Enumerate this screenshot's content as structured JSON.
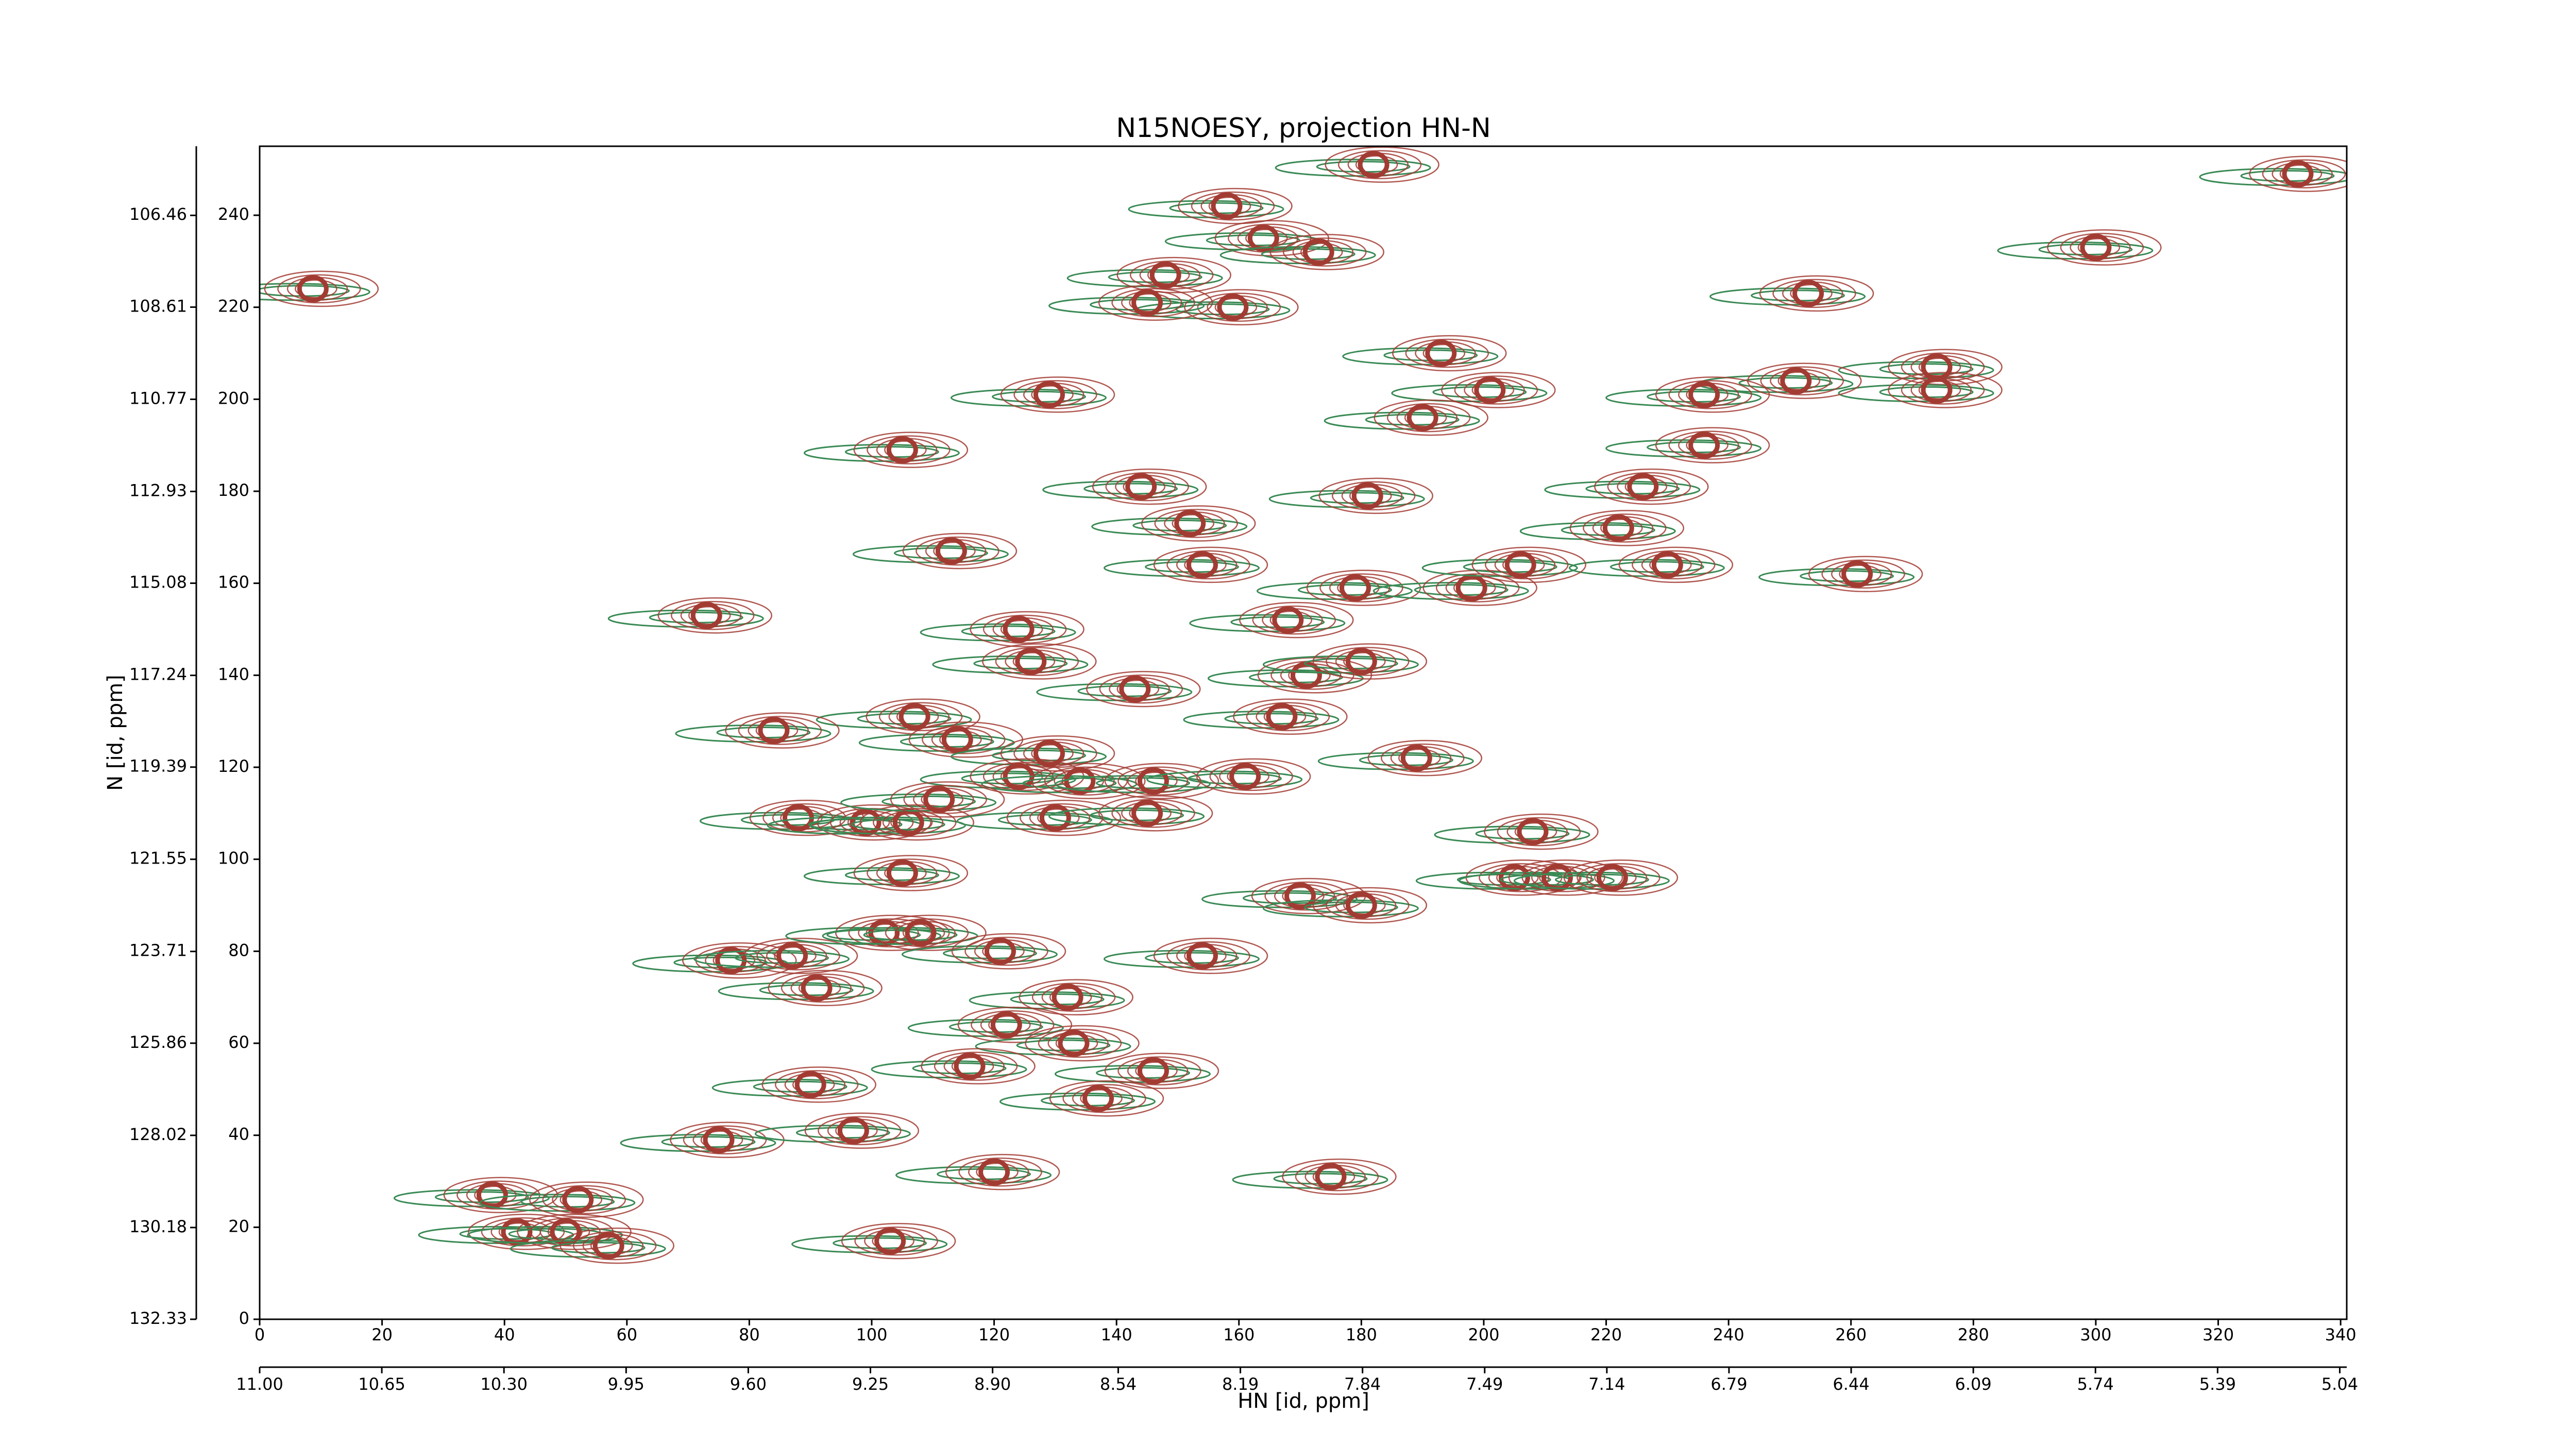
{
  "chart_data": {
    "type": "contour",
    "title": "N15NOESY, projection HN-N",
    "xlabel": "HN [id, ppm]",
    "ylabel": "N [id, ppm]",
    "xlim": [
      0,
      341
    ],
    "ylim": [
      0,
      255
    ],
    "xticks": [
      0,
      20,
      40,
      60,
      80,
      100,
      120,
      140,
      160,
      180,
      200,
      220,
      240,
      260,
      280,
      300,
      320,
      340
    ],
    "yticks": [
      0,
      20,
      40,
      60,
      80,
      100,
      120,
      140,
      160,
      180,
      200,
      220,
      240
    ],
    "x2lim": [
      11.0,
      5.02
    ],
    "x2ticks": [
      {
        "value": 11.0,
        "label": "11.00"
      },
      {
        "value": 10.65,
        "label": "10.65"
      },
      {
        "value": 10.3,
        "label": "10.30"
      },
      {
        "value": 9.95,
        "label": "9.95"
      },
      {
        "value": 9.6,
        "label": "9.60"
      },
      {
        "value": 9.25,
        "label": "9.25"
      },
      {
        "value": 8.9,
        "label": "8.90"
      },
      8.54,
      8.19,
      7.84,
      7.49,
      7.14,
      6.79,
      6.44,
      6.09,
      5.74,
      5.39,
      5.04
    ],
    "y2lim": [
      132.33,
      104.84
    ],
    "y2ticks": [
      106.46,
      108.61,
      110.77,
      112.93,
      115.08,
      117.24,
      119.39,
      121.55,
      123.71,
      125.86,
      128.02,
      130.18,
      132.33
    ],
    "color": "#a23b32",
    "negative_color": "#3a8a55",
    "x": [
      8.7,
      182,
      158,
      164,
      173,
      148,
      159,
      145,
      193,
      201,
      190,
      129,
      105,
      253,
      300,
      333,
      274,
      274,
      251,
      236,
      236,
      226,
      222,
      230,
      261,
      144,
      181,
      113,
      152,
      154,
      179,
      198,
      206,
      73,
      168,
      124,
      126,
      143,
      171,
      180,
      107,
      114,
      84,
      129,
      124,
      134,
      146,
      161,
      167,
      189,
      88,
      99,
      106,
      111,
      130,
      145,
      208,
      205,
      212,
      221,
      105,
      170,
      180,
      77,
      87,
      102,
      108,
      91,
      121,
      132,
      154,
      122,
      133,
      116,
      146,
      137,
      90,
      75,
      97,
      120,
      175,
      103,
      38,
      52,
      42,
      50,
      57
    ],
    "values": [
      224,
      251,
      242,
      235,
      232,
      227,
      220,
      221,
      210,
      202,
      196,
      201,
      189,
      223,
      233,
      249,
      207,
      202,
      204,
      201,
      190,
      181,
      172,
      164,
      162,
      181,
      179,
      167,
      173,
      164,
      159,
      159,
      164,
      153,
      152,
      150,
      143,
      137,
      140,
      143,
      131,
      126,
      128,
      123,
      118,
      117,
      117,
      118,
      131,
      122,
      109,
      108,
      108,
      113,
      109,
      110,
      106,
      96,
      96,
      96,
      97,
      92,
      90,
      78,
      79,
      84,
      84,
      72,
      80,
      70,
      79,
      64,
      60,
      55,
      54,
      48,
      51,
      39,
      41,
      32,
      31,
      17,
      27,
      26,
      19,
      19,
      16
    ]
  }
}
